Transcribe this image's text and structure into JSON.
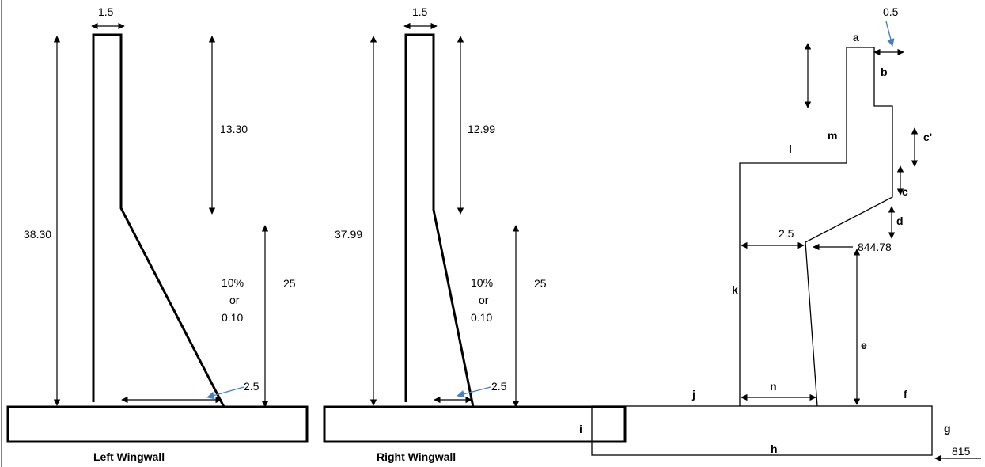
{
  "left_wingwall": {
    "caption": "Left Wingwall",
    "top_width": "1.5",
    "total_height": "38.30",
    "upper_height": "13.30",
    "lower_height": "25",
    "batter_percent": "10%",
    "batter_or": "or",
    "batter_decimal": "0.10",
    "toe_offset": "2.5"
  },
  "right_wingwall": {
    "caption": "Right Wingwall",
    "top_width": "1.5",
    "total_height": "37.99",
    "upper_height": "12.99",
    "lower_height": "25",
    "batter_percent": "10%",
    "batter_or": "or",
    "batter_decimal": "0.10",
    "toe_offset": "2.5"
  },
  "section": {
    "top_offset": "0.5",
    "seat_width": "2.5",
    "seat_elevation": "844.78",
    "base_elevation": "815",
    "labels": {
      "a": "a",
      "b": "b",
      "c_prime": "c'",
      "c": "c",
      "d": "d",
      "e": "e",
      "f": "f",
      "g": "g",
      "h": "h",
      "i": "i",
      "j": "j",
      "k": "k",
      "l": "l",
      "m": "m",
      "n": "n"
    }
  }
}
